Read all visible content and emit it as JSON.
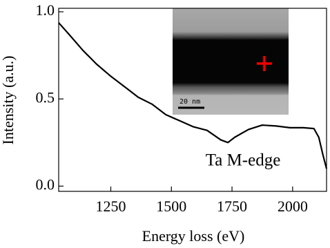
{
  "chart_data": {
    "type": "line",
    "x_label": "Energy loss (eV)",
    "y_label": "Intensity (a.u.)",
    "annotation": "Ta M-edge",
    "inset_scale_label": "20 nm",
    "xlim": [
      1035,
      2140
    ],
    "ylim": [
      -0.03,
      1.02
    ],
    "xticks": [
      1250,
      1500,
      1750,
      2000
    ],
    "yticks": [
      {
        "value": 0,
        "label": "0.0"
      },
      0.5,
      {
        "value": 1,
        "label": "1.0"
      }
    ],
    "series": [
      {
        "color": "#000000",
        "x": [
          1035,
          1078,
          1134,
          1191,
          1250,
          1307,
          1363,
          1420,
          1477,
          1534,
          1591,
          1647,
          1704,
          1733,
          1761,
          1818,
          1875,
          1932,
          1989,
          2045,
          2088,
          2108,
          2125,
          2140
        ],
        "values": [
          0.937,
          0.87,
          0.78,
          0.7,
          0.63,
          0.57,
          0.51,
          0.47,
          0.41,
          0.375,
          0.34,
          0.32,
          0.265,
          0.25,
          0.28,
          0.325,
          0.35,
          0.345,
          0.335,
          0.335,
          0.33,
          0.28,
          0.18,
          0.1
        ]
      }
    ]
  }
}
